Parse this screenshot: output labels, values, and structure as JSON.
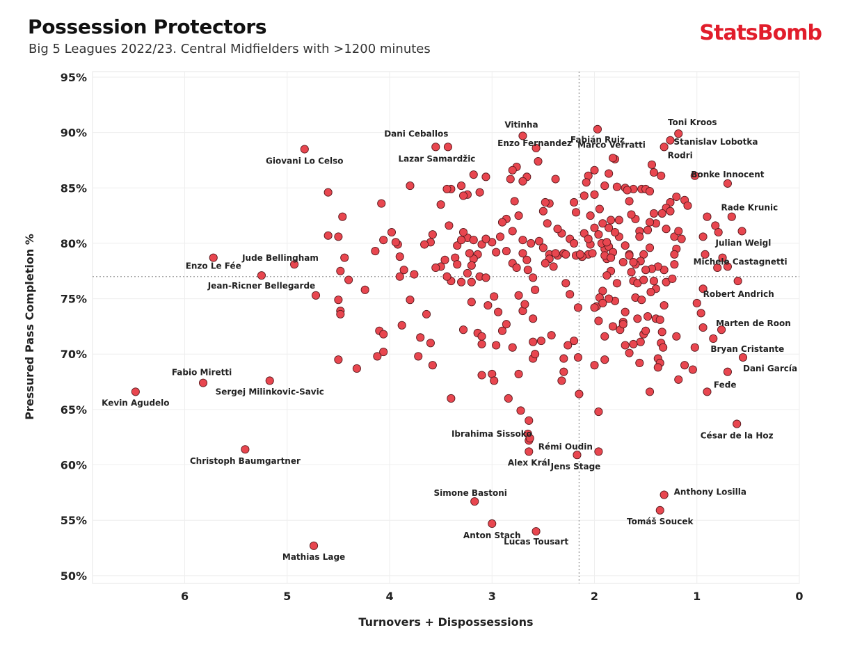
{
  "header": {
    "title": "Possession Protectors",
    "subtitle": "Big 5 Leagues 2022/23. Central Midfielders with >1200 minutes",
    "brand": "StatsBomb"
  },
  "colors": {
    "point_fill": "#e8464f",
    "point_stroke": "#5a1a1e",
    "brand": "#e11d2b"
  },
  "chart_data": {
    "type": "scatter",
    "xlabel": "Turnovers + Dispossessions",
    "ylabel": "Pressured Pass Completion %",
    "x_axis_reversed": true,
    "xlim": [
      6.9,
      0
    ],
    "ylim": [
      49.3,
      95.5
    ],
    "x_ticks": [
      6,
      5,
      4,
      3,
      2,
      1,
      0
    ],
    "y_ticks": [
      50,
      55,
      60,
      65,
      70,
      75,
      80,
      85,
      90,
      95
    ],
    "y_tick_format": "percent",
    "reference_lines": {
      "x": 2.15,
      "y": 77.0
    },
    "grid": true,
    "labeled_points": [
      {
        "label": "Toni Kroos",
        "x": 1.18,
        "y": 89.9
      },
      {
        "label": "Stanislav Lobotka",
        "x": 1.26,
        "y": 89.3
      },
      {
        "label": "Rodri",
        "x": 1.32,
        "y": 88.7
      },
      {
        "label": "Vitinha",
        "x": 2.7,
        "y": 89.7
      },
      {
        "label": "Fabián Ruiz",
        "x": 1.97,
        "y": 90.3
      },
      {
        "label": "Enzo Fernandez",
        "x": 2.57,
        "y": 88.6
      },
      {
        "label": "Marco Verratti",
        "x": 1.82,
        "y": 87.7
      },
      {
        "label": "Dani Ceballos",
        "x": 3.55,
        "y": 88.7
      },
      {
        "label": "Lazar Samardžic",
        "x": 3.43,
        "y": 88.7
      },
      {
        "label": "Giovani Lo Celso",
        "x": 4.83,
        "y": 88.5
      },
      {
        "label": "Bonke Innocent",
        "x": 0.7,
        "y": 85.4
      },
      {
        "label": "Rade Krunic",
        "x": 0.9,
        "y": 82.4
      },
      {
        "label": "Julian Weigl",
        "x": 0.56,
        "y": 81.1
      },
      {
        "label": "Michele Castagnetti",
        "x": 0.75,
        "y": 78.7
      },
      {
        "label": "Robert Andrich",
        "x": 0.6,
        "y": 76.6
      },
      {
        "label": "Jude Bellingham",
        "x": 4.93,
        "y": 78.1
      },
      {
        "label": "Enzo Le Fée",
        "x": 5.72,
        "y": 78.7
      },
      {
        "label": "Jean-Ricner Bellegarde",
        "x": 5.25,
        "y": 77.1
      },
      {
        "label": "Marten de Roon",
        "x": 0.76,
        "y": 72.2
      },
      {
        "label": "Bryan Cristante",
        "x": 0.84,
        "y": 71.4
      },
      {
        "label": "Dani García",
        "x": 0.55,
        "y": 69.7
      },
      {
        "label": "Fede",
        "x": 0.7,
        "y": 68.4
      },
      {
        "label": "César de la Hoz",
        "x": 0.61,
        "y": 63.7
      },
      {
        "label": "Fabio Miretti",
        "x": 5.82,
        "y": 67.4
      },
      {
        "label": "Sergej Milinkovic-Savic",
        "x": 5.17,
        "y": 67.6
      },
      {
        "label": "Kevin Agudelo",
        "x": 6.48,
        "y": 66.6
      },
      {
        "label": "Christoph Baumgartner",
        "x": 5.41,
        "y": 61.4
      },
      {
        "label": "Ibrahima Sissoko",
        "x": 2.65,
        "y": 62.8
      },
      {
        "label": "Rémi Oudin",
        "x": 2.63,
        "y": 62.4
      },
      {
        "label": "Alex Král",
        "x": 2.64,
        "y": 61.2
      },
      {
        "label": "Jens Stage",
        "x": 2.17,
        "y": 60.9
      },
      {
        "label": "Simone Bastoni",
        "x": 3.17,
        "y": 56.7
      },
      {
        "label": "Anthony Losilla",
        "x": 1.32,
        "y": 57.3
      },
      {
        "label": "Tomáš Soucek",
        "x": 1.36,
        "y": 55.9
      },
      {
        "label": "Anton Stach",
        "x": 3.0,
        "y": 54.7
      },
      {
        "label": "Lucas Tousart",
        "x": 2.57,
        "y": 54.0
      },
      {
        "label": "Mathias Lage",
        "x": 4.74,
        "y": 52.7
      }
    ],
    "points": [
      [
        1.02,
        86.1
      ],
      [
        1.12,
        83.9
      ],
      [
        1.09,
        83.4
      ],
      [
        1.2,
        84.2
      ],
      [
        1.26,
        83.7
      ],
      [
        1.3,
        83.2
      ],
      [
        1.26,
        82.9
      ],
      [
        1.34,
        82.7
      ],
      [
        1.4,
        81.8
      ],
      [
        1.42,
        82.7
      ],
      [
        1.3,
        81.3
      ],
      [
        1.22,
        80.6
      ],
      [
        1.18,
        81.1
      ],
      [
        1.15,
        80.4
      ],
      [
        1.2,
        79.5
      ],
      [
        1.22,
        79.0
      ],
      [
        1.22,
        78.1
      ],
      [
        1.32,
        77.6
      ],
      [
        1.38,
        77.9
      ],
      [
        1.44,
        77.7
      ],
      [
        1.42,
        76.6
      ],
      [
        1.4,
        75.9
      ],
      [
        1.45,
        75.6
      ],
      [
        1.3,
        76.5
      ],
      [
        1.24,
        76.8
      ],
      [
        1.32,
        74.4
      ],
      [
        1.4,
        73.2
      ],
      [
        1.35,
        71.0
      ],
      [
        1.33,
        70.6
      ],
      [
        1.38,
        69.6
      ],
      [
        1.36,
        69.2
      ],
      [
        1.38,
        68.8
      ],
      [
        1.12,
        69.0
      ],
      [
        1.18,
        67.7
      ],
      [
        1.2,
        71.6
      ],
      [
        1.46,
        79.6
      ],
      [
        1.52,
        79.0
      ],
      [
        1.55,
        78.4
      ],
      [
        1.6,
        78.1
      ],
      [
        1.62,
        76.6
      ],
      [
        1.6,
        75.1
      ],
      [
        1.58,
        76.4
      ],
      [
        1.55,
        71.1
      ],
      [
        1.52,
        71.8
      ],
      [
        1.58,
        73.2
      ],
      [
        1.62,
        70.9
      ],
      [
        1.66,
        70.1
      ],
      [
        1.7,
        70.8
      ],
      [
        1.7,
        73.8
      ],
      [
        1.72,
        72.9
      ],
      [
        1.75,
        72.2
      ],
      [
        1.8,
        74.8
      ],
      [
        1.86,
        75.0
      ],
      [
        1.92,
        75.7
      ],
      [
        1.95,
        75.1
      ],
      [
        1.98,
        74.3
      ],
      [
        1.92,
        74.6
      ],
      [
        1.96,
        73.0
      ],
      [
        1.9,
        71.6
      ],
      [
        1.82,
        72.5
      ],
      [
        1.72,
        72.7
      ],
      [
        1.78,
        76.4
      ],
      [
        1.84,
        77.5
      ],
      [
        1.88,
        77.1
      ],
      [
        1.88,
        78.6
      ],
      [
        1.9,
        79.5
      ],
      [
        1.93,
        80.0
      ],
      [
        1.86,
        79.7
      ],
      [
        1.82,
        79.2
      ],
      [
        1.76,
        80.6
      ],
      [
        1.8,
        81.0
      ],
      [
        1.84,
        82.1
      ],
      [
        1.86,
        81.4
      ],
      [
        1.76,
        82.1
      ],
      [
        1.92,
        81.8
      ],
      [
        1.95,
        83.1
      ],
      [
        2.0,
        81.4
      ],
      [
        2.04,
        79.9
      ],
      [
        2.1,
        80.9
      ],
      [
        2.12,
        78.8
      ],
      [
        2.06,
        79.0
      ],
      [
        2.02,
        79.1
      ],
      [
        2.0,
        74.2
      ],
      [
        2.0,
        69.0
      ],
      [
        1.9,
        69.5
      ],
      [
        2.15,
        66.4
      ],
      [
        2.16,
        69.7
      ],
      [
        2.2,
        71.2
      ],
      [
        2.26,
        70.8
      ],
      [
        2.3,
        69.6
      ],
      [
        2.32,
        67.6
      ],
      [
        2.3,
        68.4
      ],
      [
        2.42,
        71.7
      ],
      [
        2.52,
        71.2
      ],
      [
        2.6,
        69.6
      ],
      [
        2.58,
        70.0
      ],
      [
        2.6,
        71.1
      ],
      [
        2.6,
        73.2
      ],
      [
        2.7,
        73.9
      ],
      [
        2.68,
        74.5
      ],
      [
        2.74,
        75.3
      ],
      [
        2.58,
        75.8
      ],
      [
        2.6,
        76.9
      ],
      [
        2.65,
        77.6
      ],
      [
        2.4,
        77.9
      ],
      [
        2.44,
        79.0
      ],
      [
        2.5,
        79.6
      ],
      [
        2.36,
        78.9
      ],
      [
        2.3,
        79.1
      ],
      [
        2.24,
        80.4
      ],
      [
        2.2,
        80.0
      ],
      [
        2.18,
        78.9
      ],
      [
        2.12,
        78.8
      ],
      [
        2.32,
        80.9
      ],
      [
        2.36,
        81.3
      ],
      [
        2.46,
        81.8
      ],
      [
        2.5,
        82.9
      ],
      [
        2.44,
        83.6
      ],
      [
        2.48,
        83.7
      ],
      [
        2.38,
        85.8
      ],
      [
        2.55,
        87.4
      ],
      [
        2.66,
        86.0
      ],
      [
        2.76,
        86.9
      ],
      [
        2.8,
        86.6
      ],
      [
        2.82,
        85.8
      ],
      [
        2.7,
        85.6
      ],
      [
        2.78,
        83.8
      ],
      [
        2.74,
        82.5
      ],
      [
        2.86,
        82.2
      ],
      [
        2.9,
        81.9
      ],
      [
        2.92,
        80.6
      ],
      [
        3.0,
        80.1
      ],
      [
        3.1,
        79.9
      ],
      [
        3.14,
        79.0
      ],
      [
        3.18,
        78.6
      ],
      [
        3.2,
        78.0
      ],
      [
        3.24,
        77.3
      ],
      [
        3.12,
        77.0
      ],
      [
        3.06,
        76.9
      ],
      [
        3.2,
        76.5
      ],
      [
        3.3,
        76.5
      ],
      [
        3.4,
        76.6
      ],
      [
        3.44,
        77.0
      ],
      [
        3.5,
        77.9
      ],
      [
        3.55,
        77.8
      ],
      [
        3.46,
        78.5
      ],
      [
        3.36,
        78.7
      ],
      [
        3.34,
        79.8
      ],
      [
        3.24,
        80.5
      ],
      [
        3.3,
        80.3
      ],
      [
        3.28,
        81.0
      ],
      [
        3.42,
        81.6
      ],
      [
        3.5,
        83.5
      ],
      [
        3.58,
        80.8
      ],
      [
        3.6,
        80.1
      ],
      [
        3.66,
        79.9
      ],
      [
        3.76,
        77.2
      ],
      [
        3.86,
        77.6
      ],
      [
        3.9,
        78.8
      ],
      [
        3.92,
        79.9
      ],
      [
        3.94,
        80.1
      ],
      [
        3.98,
        81.0
      ],
      [
        4.06,
        80.3
      ],
      [
        4.14,
        79.3
      ],
      [
        4.24,
        75.8
      ],
      [
        4.1,
        72.1
      ],
      [
        4.06,
        71.8
      ],
      [
        3.88,
        72.6
      ],
      [
        3.8,
        74.9
      ],
      [
        3.64,
        73.6
      ],
      [
        3.7,
        71.5
      ],
      [
        3.6,
        71.0
      ],
      [
        3.58,
        69.0
      ],
      [
        3.72,
        69.8
      ],
      [
        4.06,
        70.2
      ],
      [
        4.12,
        69.8
      ],
      [
        4.32,
        68.7
      ],
      [
        4.5,
        69.5
      ],
      [
        3.28,
        72.2
      ],
      [
        3.14,
        71.9
      ],
      [
        3.1,
        71.6
      ],
      [
        3.1,
        70.9
      ],
      [
        2.9,
        72.1
      ],
      [
        2.86,
        72.7
      ],
      [
        2.98,
        75.2
      ],
      [
        2.94,
        73.8
      ],
      [
        2.96,
        70.8
      ],
      [
        2.8,
        70.6
      ],
      [
        2.74,
        68.2
      ],
      [
        3.0,
        68.2
      ],
      [
        3.1,
        68.1
      ],
      [
        2.98,
        67.6
      ],
      [
        2.84,
        66.0
      ],
      [
        2.72,
        64.9
      ],
      [
        2.64,
        64.0
      ],
      [
        2.64,
        62.2
      ],
      [
        3.4,
        66.0
      ],
      [
        1.96,
        64.8
      ],
      [
        1.96,
        61.2
      ],
      [
        1.46,
        66.6
      ],
      [
        1.04,
        68.6
      ],
      [
        0.9,
        66.6
      ],
      [
        0.94,
        75.9
      ],
      [
        1.0,
        74.6
      ],
      [
        0.96,
        73.7
      ],
      [
        0.94,
        72.4
      ],
      [
        1.02,
        70.6
      ],
      [
        0.94,
        80.6
      ],
      [
        0.82,
        81.6
      ],
      [
        0.79,
        81.0
      ],
      [
        0.66,
        82.4
      ],
      [
        0.92,
        79.0
      ],
      [
        0.7,
        77.9
      ],
      [
        0.8,
        77.8
      ],
      [
        4.6,
        84.6
      ],
      [
        4.46,
        82.4
      ],
      [
        4.5,
        80.6
      ],
      [
        4.6,
        80.7
      ],
      [
        4.44,
        78.7
      ],
      [
        4.48,
        77.5
      ],
      [
        4.4,
        76.7
      ],
      [
        4.5,
        74.9
      ],
      [
        4.48,
        73.9
      ],
      [
        4.48,
        73.6
      ],
      [
        4.72,
        75.3
      ],
      [
        3.9,
        77.0
      ],
      [
        3.34,
        78.1
      ],
      [
        1.54,
        74.9
      ],
      [
        1.5,
        72.1
      ],
      [
        1.56,
        69.2
      ],
      [
        1.48,
        73.4
      ],
      [
        1.34,
        72.0
      ],
      [
        1.36,
        73.1
      ],
      [
        1.78,
        85.1
      ],
      [
        1.7,
        85.0
      ],
      [
        1.62,
        84.9
      ],
      [
        1.54,
        84.9
      ],
      [
        1.5,
        84.9
      ],
      [
        1.46,
        84.7
      ],
      [
        1.42,
        86.4
      ],
      [
        1.35,
        86.1
      ],
      [
        1.44,
        87.1
      ],
      [
        1.8,
        87.6
      ],
      [
        1.86,
        86.3
      ],
      [
        1.9,
        85.2
      ],
      [
        2.0,
        86.6
      ],
      [
        2.06,
        86.1
      ],
      [
        2.08,
        85.5
      ],
      [
        2.0,
        84.4
      ],
      [
        2.1,
        84.3
      ],
      [
        2.2,
        83.7
      ],
      [
        2.18,
        82.8
      ],
      [
        2.04,
        82.5
      ],
      [
        1.96,
        80.8
      ],
      [
        1.9,
        78.9
      ],
      [
        1.7,
        79.8
      ],
      [
        1.66,
        79.0
      ],
      [
        1.62,
        78.3
      ],
      [
        1.64,
        77.4
      ],
      [
        1.5,
        77.6
      ],
      [
        1.52,
        76.7
      ],
      [
        1.56,
        81.1
      ],
      [
        1.48,
        81.2
      ],
      [
        1.6,
        82.2
      ],
      [
        1.64,
        82.6
      ],
      [
        1.68,
        84.8
      ],
      [
        1.66,
        83.8
      ],
      [
        1.46,
        81.9
      ],
      [
        1.56,
        80.6
      ],
      [
        1.66,
        78.9
      ],
      [
        1.72,
        78.3
      ],
      [
        1.84,
        78.7
      ],
      [
        1.88,
        80.1
      ],
      [
        2.06,
        80.4
      ],
      [
        2.14,
        79.0
      ],
      [
        2.28,
        79.0
      ],
      [
        2.38,
        79.1
      ],
      [
        2.44,
        78.6
      ],
      [
        2.48,
        78.2
      ],
      [
        2.54,
        80.2
      ],
      [
        2.62,
        80.0
      ],
      [
        2.7,
        79.1
      ],
      [
        2.8,
        78.2
      ],
      [
        2.86,
        79.3
      ],
      [
        2.96,
        79.2
      ],
      [
        3.06,
        80.4
      ],
      [
        3.18,
        80.3
      ],
      [
        3.22,
        79.1
      ],
      [
        3.06,
        86.0
      ],
      [
        3.12,
        84.6
      ],
      [
        3.18,
        86.2
      ],
      [
        3.24,
        84.4
      ],
      [
        3.28,
        84.3
      ],
      [
        3.4,
        84.9
      ],
      [
        3.44,
        84.9
      ],
      [
        3.3,
        85.2
      ],
      [
        3.8,
        85.2
      ],
      [
        4.08,
        83.6
      ],
      [
        2.8,
        81.1
      ],
      [
        2.7,
        80.3
      ],
      [
        2.66,
        78.5
      ],
      [
        2.76,
        77.8
      ],
      [
        3.2,
        74.7
      ],
      [
        3.04,
        74.4
      ],
      [
        2.28,
        76.4
      ],
      [
        2.24,
        75.4
      ],
      [
        2.16,
        74.2
      ]
    ]
  }
}
